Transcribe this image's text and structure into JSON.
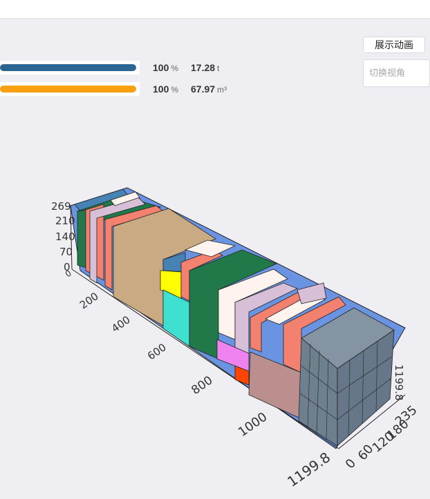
{
  "toolbar": {
    "animate_button": "展示动画",
    "view_select_placeholder": "切换视角"
  },
  "stats": [
    {
      "percent": "100",
      "percent_unit": "%",
      "value": "17.28",
      "value_unit": "t",
      "fill_ratio": 1.0,
      "color": "#2c6492"
    },
    {
      "percent": "100",
      "percent_unit": "%",
      "value": "67.97",
      "value_unit": "m³",
      "fill_ratio": 1.0,
      "color": "#f9a011"
    }
  ],
  "axes": {
    "z_ticks": [
      "269",
      "210",
      "140",
      "70",
      "0"
    ],
    "x_ticks": [
      "0",
      "200",
      "400",
      "600",
      "800",
      "1000",
      "1199.8"
    ],
    "y_ticks": [
      "0",
      "60",
      "120",
      "180",
      "235"
    ],
    "length_end_label": "1199.8"
  },
  "colors": {
    "container": "#6a93e2",
    "gray_block": "#6e7f8e",
    "salmon": "#f2826f",
    "tan": "#c9aa83",
    "green": "#21794a",
    "lavender": "#d8bfd8",
    "cream": "#fff3ee",
    "steelblue": "#4682b4",
    "turquoise": "#40e0d0",
    "yellow": "#ffff00",
    "violet": "#ee82ee",
    "rosybrown": "#bc8f8f",
    "orangered": "#ff4500"
  }
}
